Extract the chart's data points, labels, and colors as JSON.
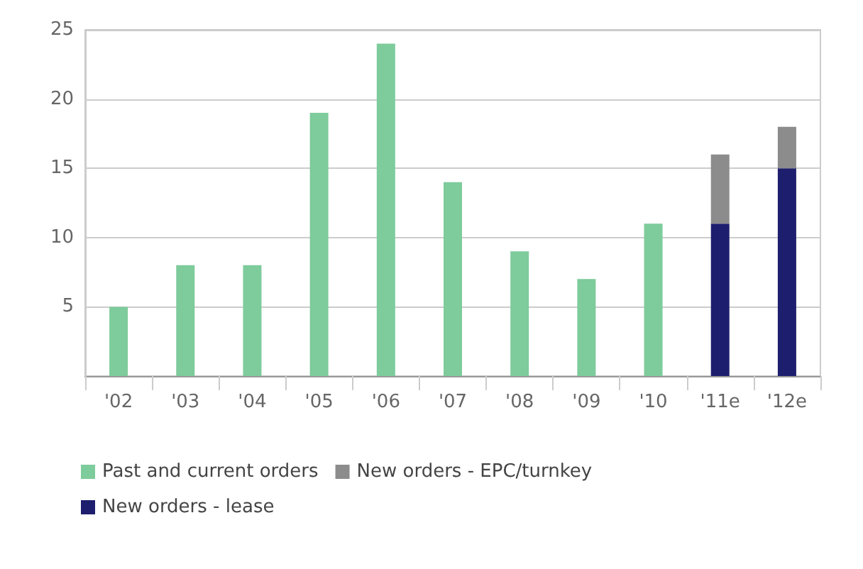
{
  "chart_data": {
    "type": "bar",
    "stacked": true,
    "categories": [
      "'02",
      "'03",
      "'04",
      "'05",
      "'06",
      "'07",
      "'08",
      "'09",
      "'10",
      "'11e",
      "'12e"
    ],
    "series": [
      {
        "name": "Past and current orders",
        "color": "#7ecb9b",
        "values": [
          5,
          8,
          8,
          19,
          24,
          14,
          9,
          7,
          11,
          null,
          null
        ]
      },
      {
        "name": "New orders - lease",
        "color": "#1e1e6e",
        "values": [
          null,
          null,
          null,
          null,
          null,
          null,
          null,
          null,
          null,
          11,
          15
        ]
      },
      {
        "name": "New orders - EPC/turnkey",
        "color": "#8c8c8c",
        "values": [
          null,
          null,
          null,
          null,
          null,
          null,
          null,
          null,
          null,
          5,
          3
        ]
      }
    ],
    "ylim": [
      0,
      25
    ],
    "yticks": [
      {
        "value": 0,
        "label": null
      },
      5,
      10,
      15,
      20,
      25
    ],
    "grid": "y",
    "legend": "bottom left"
  }
}
